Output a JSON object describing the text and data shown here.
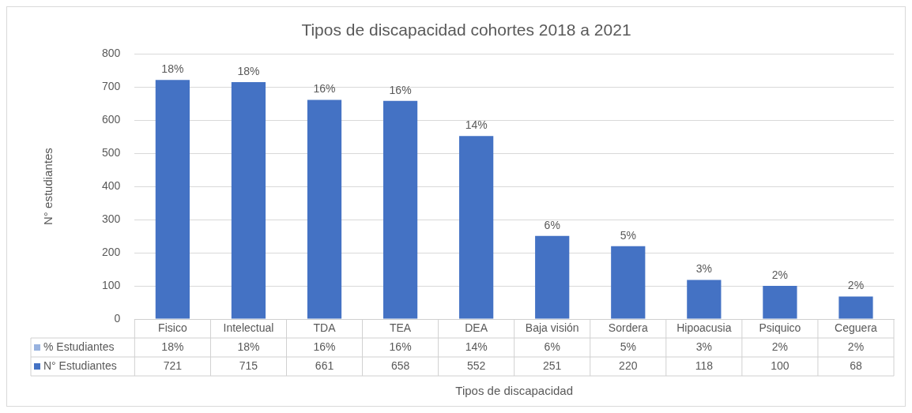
{
  "chart_data": {
    "type": "bar",
    "title": "Tipos de discapacidad cohortes 2018 a 2021",
    "xlabel": "Tipos de discapacidad",
    "ylabel": "N° estudiantes",
    "categories": [
      "Fisico",
      "Intelectual",
      "TDA",
      "TEA",
      "DEA",
      "Baja visión",
      "Sordera",
      "Hipoacusia",
      "Psiquico",
      "Ceguera"
    ],
    "series": [
      {
        "name": "N° Estudiantes",
        "color": "#4472c4",
        "values": [
          721,
          715,
          661,
          658,
          552,
          251,
          220,
          118,
          100,
          68
        ]
      }
    ],
    "annotations": [
      "% Estudiantes",
      {
        "text": "18%",
        "x": "Fisico",
        "y": 721
      },
      {
        "text": "18%",
        "x": "Intelectual",
        "y": 715
      },
      {
        "text": "16%",
        "x": "TDA",
        "y": 661
      },
      {
        "text": "16%",
        "x": "TEA",
        "y": 658
      },
      {
        "text": "14%",
        "x": "DEA",
        "y": 552
      },
      {
        "text": "6%",
        "x": "Baja visión",
        "y": 251
      },
      {
        "text": "5%",
        "x": "Sordera",
        "y": 220
      },
      {
        "text": "3%",
        "x": "Hipoacusia",
        "y": 118
      },
      {
        "text": "2%",
        "x": "Psiquico",
        "y": 100
      },
      {
        "text": "2%",
        "x": "Ceguera",
        "y": 68
      }
    ],
    "data_labels": true,
    "ylim": [
      0,
      800
    ],
    "yticks": [
      0,
      100,
      200,
      300,
      400,
      500,
      600,
      700,
      800
    ],
    "grid": "y"
  }
}
